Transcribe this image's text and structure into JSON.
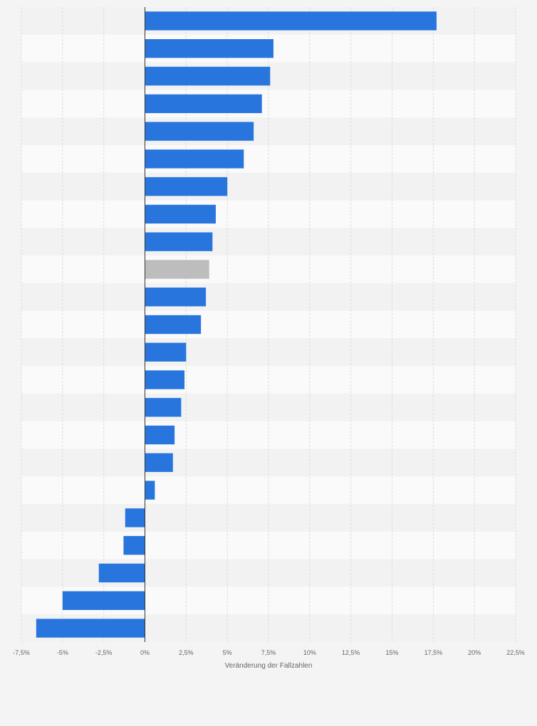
{
  "chart_data": {
    "type": "bar",
    "orientation": "horizontal",
    "xlabel": "Veränderung der Fallzahlen",
    "xlim": [
      -7.5,
      22.5
    ],
    "x_ticks": [
      -7.5,
      -5,
      -2.5,
      0,
      2.5,
      5,
      7.5,
      10,
      12.5,
      15,
      17.5,
      20,
      22.5
    ],
    "x_tick_labels": [
      "-7,5%",
      "-5%",
      "-2,5%",
      "0%",
      "2,5%",
      "5%",
      "7,5%",
      "10%",
      "12,5%",
      "15%",
      "17,5%",
      "20%",
      "22,5%"
    ],
    "values": [
      17.7,
      7.8,
      7.6,
      7.1,
      6.6,
      6.0,
      5.0,
      4.3,
      4.1,
      3.9,
      3.7,
      3.4,
      2.5,
      2.4,
      2.2,
      1.8,
      1.7,
      0.6,
      -1.2,
      -1.3,
      -2.8,
      -5.0,
      -6.6
    ],
    "bar_colors": [
      "#2876dd",
      "#2876dd",
      "#2876dd",
      "#2876dd",
      "#2876dd",
      "#2876dd",
      "#2876dd",
      "#2876dd",
      "#2876dd",
      "#bdbdbd",
      "#2876dd",
      "#2876dd",
      "#2876dd",
      "#2876dd",
      "#2876dd",
      "#2876dd",
      "#2876dd",
      "#2876dd",
      "#2876dd",
      "#2876dd",
      "#2876dd",
      "#2876dd",
      "#2876dd"
    ],
    "grid": true,
    "legend": "none"
  }
}
